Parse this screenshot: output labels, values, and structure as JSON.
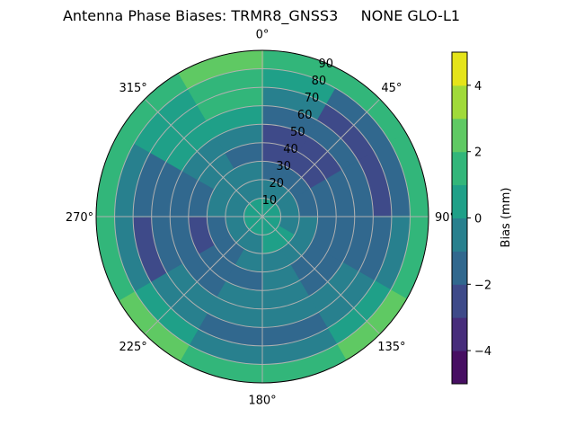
{
  "chart_data": {
    "type": "heatmap",
    "subtype": "polar-contour",
    "title": "Antenna Phase Biases: TRMR8_GNSS3     NONE GLO-L1",
    "theta_ticks": [
      "0°",
      "45°",
      "90°",
      "135°",
      "180°",
      "225°",
      "270°",
      "315°"
    ],
    "theta_tick_values": [
      0,
      45,
      90,
      135,
      180,
      225,
      270,
      315
    ],
    "r_ticks": [
      "10",
      "20",
      "30",
      "40",
      "50",
      "60",
      "70",
      "80",
      "90"
    ],
    "r_tick_values": [
      10,
      20,
      30,
      40,
      50,
      60,
      70,
      80,
      90
    ],
    "rlim": [
      0,
      90
    ],
    "theta_direction": "clockwise",
    "theta_zero": "top",
    "grid": true,
    "azimuth_bin_centers": [
      15,
      45,
      75,
      105,
      135,
      165,
      195,
      225,
      255,
      285,
      315,
      345
    ],
    "zenith_bin_centers": [
      5,
      15,
      25,
      35,
      45,
      55,
      65,
      75,
      85
    ],
    "values": [
      [
        0.5,
        -0.5,
        -1.5,
        -2.5,
        -2.5,
        -1.5,
        -0.5,
        0.5,
        1.5
      ],
      [
        0.5,
        -0.5,
        -1.5,
        -2.5,
        -2.5,
        -1.5,
        -2.5,
        -1.5,
        1.5
      ],
      [
        0.5,
        -0.5,
        -1.5,
        -1.5,
        -1.5,
        -1.5,
        -2.5,
        -1.5,
        1.5
      ],
      [
        0.5,
        -0.5,
        -0.5,
        -1.5,
        -1.5,
        -1.5,
        -1.5,
        -0.5,
        1.5
      ],
      [
        0.5,
        0.5,
        -0.5,
        -1.5,
        -1.5,
        -0.5,
        -0.5,
        0.5,
        2.5
      ],
      [
        0.5,
        0.5,
        -0.5,
        -0.5,
        -0.5,
        -0.5,
        -1.5,
        -0.5,
        1.5
      ],
      [
        0.5,
        -0.5,
        -0.5,
        -1.5,
        -0.5,
        -0.5,
        -1.5,
        -0.5,
        1.5
      ],
      [
        0.5,
        -0.5,
        -1.5,
        -1.5,
        -1.5,
        -0.5,
        -0.5,
        0.5,
        2.5
      ],
      [
        0.5,
        -0.5,
        -1.5,
        -2.5,
        -1.5,
        -1.5,
        -2.5,
        -0.5,
        1.5
      ],
      [
        0.5,
        -0.5,
        -0.5,
        -1.5,
        -1.5,
        -1.5,
        -1.5,
        -0.5,
        1.5
      ],
      [
        0.5,
        -0.5,
        -0.5,
        -0.5,
        -0.5,
        0.5,
        0.5,
        0.5,
        1.5
      ],
      [
        0.5,
        -0.5,
        -0.5,
        -1.5,
        -0.5,
        0.5,
        1.5,
        1.5,
        2.5
      ]
    ],
    "colorbar": {
      "label": "Bias (mm)",
      "levels": [
        -5,
        -4,
        -3,
        -2,
        -1,
        0,
        1,
        2,
        3,
        4,
        5
      ],
      "ticks": [
        -4,
        -2,
        0,
        2,
        4
      ],
      "tick_labels": [
        "−4",
        "−2",
        "0",
        "2",
        "4"
      ],
      "colors": [
        "#470f62",
        "#472d7b",
        "#3e4a89",
        "#31688e",
        "#28808e",
        "#1fa088",
        "#32b67a",
        "#5fc963",
        "#a0da39",
        "#e5e419"
      ]
    }
  }
}
